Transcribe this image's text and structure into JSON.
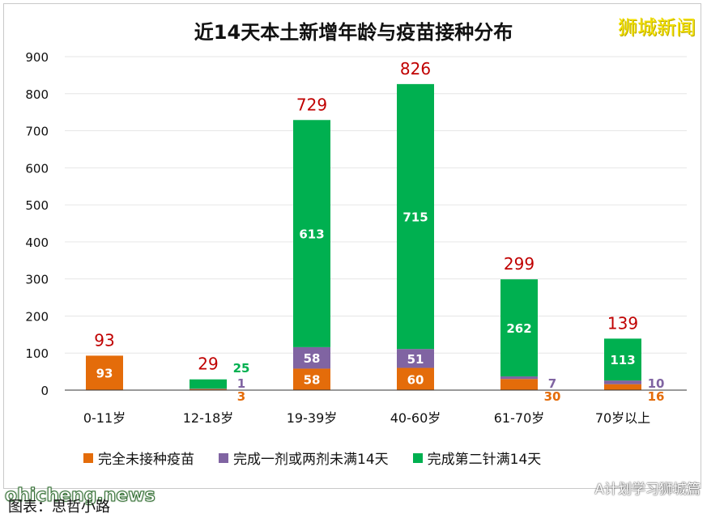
{
  "title": "近14天本土新增年龄与疫苗接种分布",
  "brand": "狮城新闻",
  "caption": "图表：思哲小路",
  "watermark_left": "ohicheng.news",
  "watermark_right": "A计划学习狮城篇",
  "colors": {
    "unvaccinated": "#e46c0a",
    "partial": "#8064a2",
    "full": "#00b050",
    "total_label": "#c00000",
    "axis": "#333333",
    "grid": "#e6e6e6"
  },
  "chart_data": {
    "type": "bar",
    "stacked": true,
    "categories": [
      "0-11岁",
      "12-18岁",
      "19-39岁",
      "40-60岁",
      "61-70岁",
      "70岁以上"
    ],
    "series": [
      {
        "name": "完全未接种疫苗",
        "values": [
          93,
          3,
          58,
          60,
          30,
          16
        ]
      },
      {
        "name": "完成一剂或两剂未满14天",
        "values": [
          0,
          1,
          58,
          51,
          7,
          10
        ]
      },
      {
        "name": "完成第二针满14天",
        "values": [
          0,
          25,
          613,
          715,
          262,
          113
        ]
      }
    ],
    "totals": [
      93,
      29,
      729,
      826,
      299,
      139
    ],
    "yticks": [
      "0",
      "100",
      "200",
      "300",
      "400",
      "500",
      "600",
      "700",
      "800",
      "900"
    ],
    "ylim": [
      0,
      900
    ],
    "legend_position": "bottom"
  }
}
